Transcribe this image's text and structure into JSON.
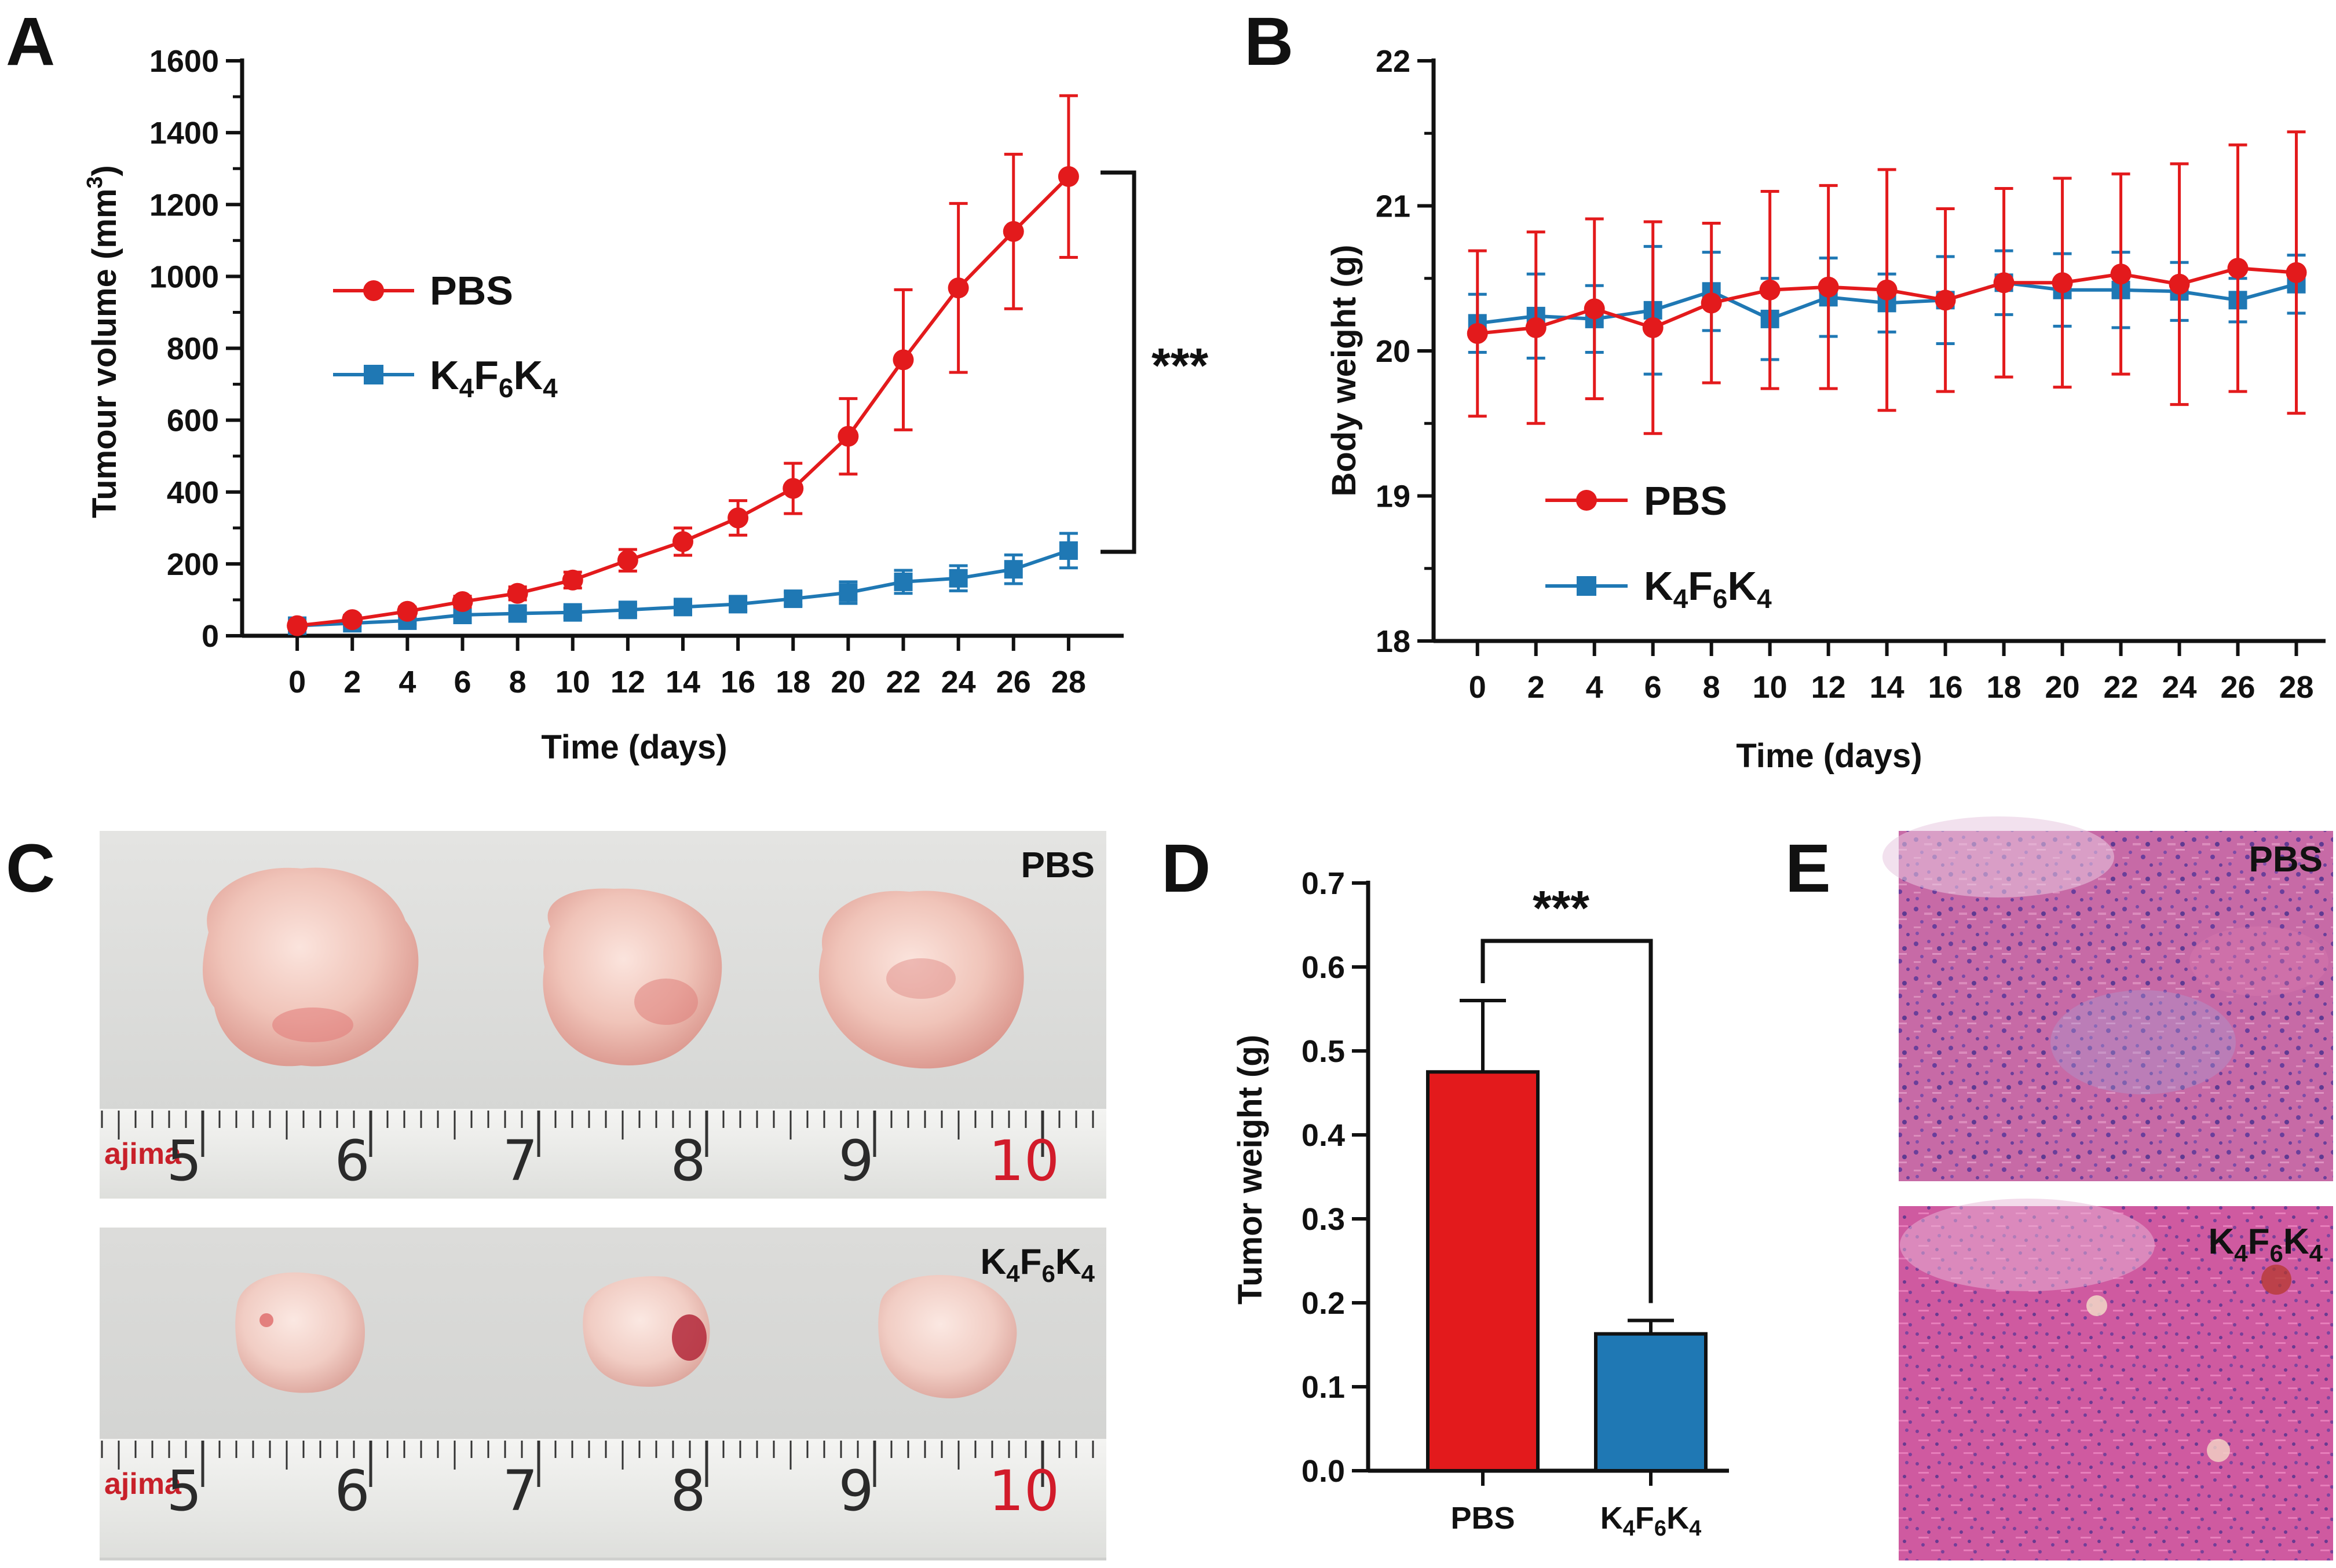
{
  "colors": {
    "pbs": "#e31a1c",
    "k4f6k4": "#1f78b4",
    "axis": "#111111"
  },
  "panels": {
    "a": "A",
    "b": "B",
    "c": "C",
    "d": "D",
    "e": "E"
  },
  "labels": {
    "pbs": "PBS",
    "k4f6k4_main": "K",
    "k4f6k4_sub1": "4",
    "k4f6k4_mid": "F",
    "k4f6k4_sub2": "6",
    "k4f6k4_end": "K",
    "k4f6k4_sub3": "4"
  },
  "photos": {
    "ruler_brand": "ajima",
    "ruler_numbers": [
      "5",
      "6",
      "7",
      "8",
      "9",
      "10"
    ],
    "top_label": "PBS",
    "bottom_label": "K4F6K4"
  },
  "histology": {
    "top_label": "PBS",
    "bottom_label": "K4F6K4"
  },
  "chart_data": [
    {
      "id": "A",
      "type": "line",
      "title": "",
      "xlabel": "Time (days)",
      "ylabel_main": "Tumour volume (mm",
      "ylabel_sup": "3",
      "ylabel_end": ")",
      "x": [
        0,
        2,
        4,
        6,
        8,
        10,
        12,
        14,
        16,
        18,
        20,
        22,
        24,
        26,
        28
      ],
      "xlim": [
        -2,
        30
      ],
      "ylim": [
        0,
        1600
      ],
      "yticks": [
        0,
        200,
        400,
        600,
        800,
        1000,
        1200,
        1400,
        1600
      ],
      "legend": "center-left",
      "significance": "***",
      "series": [
        {
          "name": "PBS",
          "marker": "circle",
          "values": [
            28,
            45,
            68,
            95,
            118,
            155,
            210,
            262,
            328,
            410,
            555,
            768,
            968,
            1125,
            1278
          ],
          "errors": [
            8,
            10,
            12,
            15,
            18,
            22,
            30,
            38,
            48,
            70,
            105,
            195,
            235,
            215,
            225
          ]
        },
        {
          "name": "K4F6K4",
          "marker": "square",
          "values": [
            28,
            35,
            42,
            58,
            62,
            65,
            72,
            80,
            88,
            103,
            120,
            150,
            160,
            185,
            237
          ],
          "errors": [
            6,
            8,
            10,
            12,
            12,
            14,
            15,
            15,
            18,
            18,
            30,
            32,
            35,
            40,
            48
          ]
        }
      ]
    },
    {
      "id": "B",
      "type": "line",
      "title": "",
      "xlabel": "Time (days)",
      "ylabel": "Body weight (g)",
      "x": [
        0,
        2,
        4,
        6,
        8,
        10,
        12,
        14,
        16,
        18,
        20,
        22,
        24,
        26,
        28
      ],
      "xlim": [
        -1.5,
        29
      ],
      "ylim": [
        18,
        22
      ],
      "yticks": [
        18,
        19,
        20,
        21,
        22
      ],
      "legend": "bottom-left",
      "series": [
        {
          "name": "PBS",
          "marker": "circle",
          "values": [
            20.12,
            20.16,
            20.29,
            20.16,
            20.33,
            20.42,
            20.44,
            20.42,
            20.35,
            20.47,
            20.47,
            20.53,
            20.46,
            20.57,
            20.54
          ],
          "errors": [
            0.57,
            0.66,
            0.62,
            0.73,
            0.55,
            0.68,
            0.7,
            0.83,
            0.63,
            0.65,
            0.72,
            0.69,
            0.83,
            0.85,
            0.97
          ]
        },
        {
          "name": "K4F6K4",
          "marker": "square",
          "values": [
            20.19,
            20.24,
            20.22,
            20.28,
            20.41,
            20.22,
            20.37,
            20.33,
            20.35,
            20.47,
            20.42,
            20.42,
            20.41,
            20.35,
            20.46
          ],
          "errors": [
            0.2,
            0.29,
            0.23,
            0.44,
            0.27,
            0.28,
            0.27,
            0.2,
            0.3,
            0.22,
            0.25,
            0.26,
            0.2,
            0.15,
            0.2
          ]
        }
      ]
    },
    {
      "id": "D",
      "type": "bar",
      "title": "",
      "xlabel": "",
      "ylabel": "Tumor weight (g)",
      "categories": [
        "PBS",
        "K4F6K4"
      ],
      "values": [
        0.475,
        0.163
      ],
      "errors": [
        0.085,
        0.016
      ],
      "ylim": [
        0,
        0.7
      ],
      "yticks": [
        0.0,
        0.1,
        0.2,
        0.3,
        0.4,
        0.5,
        0.6,
        0.7
      ],
      "significance": "***"
    }
  ]
}
